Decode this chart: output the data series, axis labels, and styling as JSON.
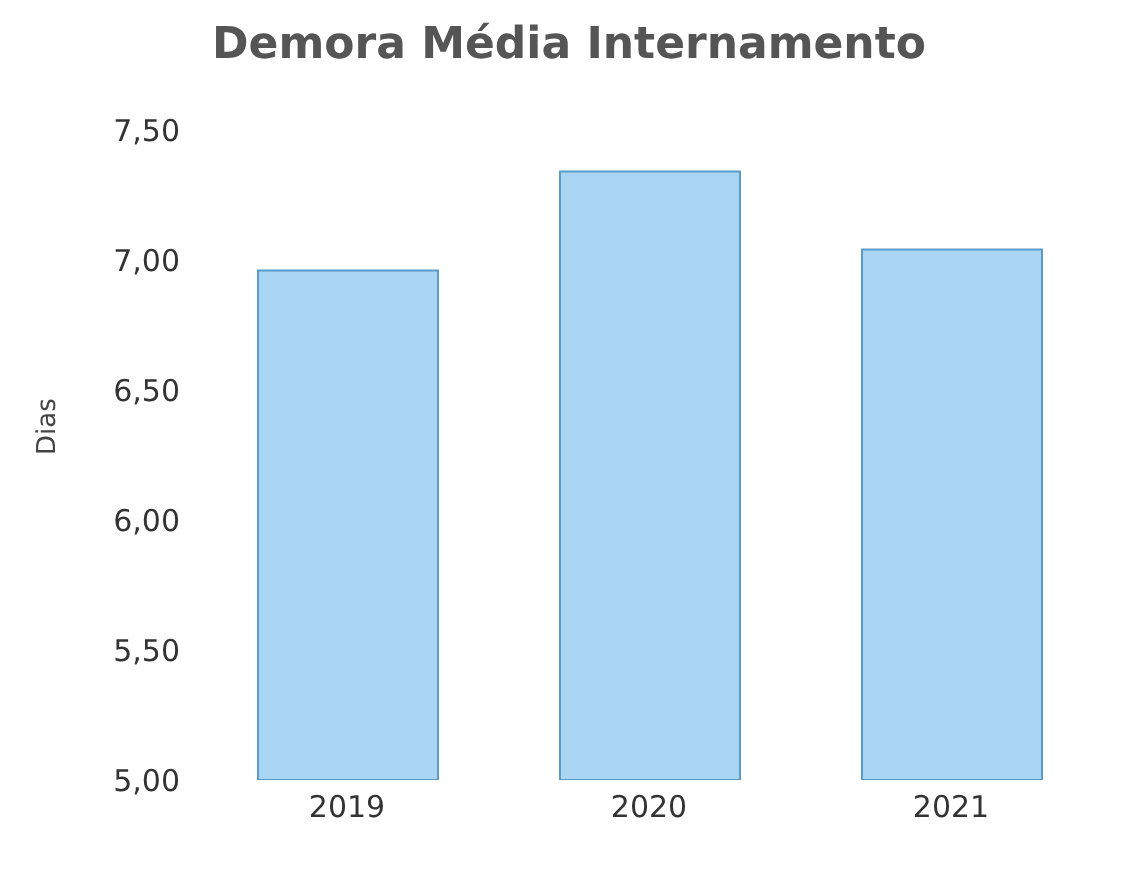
{
  "chart_data": {
    "type": "bar",
    "title": "Demora Média Internamento",
    "ylabel": "Dias",
    "categories": [
      "2019",
      "2020",
      "2021"
    ],
    "values": [
      6.96,
      7.34,
      7.04
    ],
    "color": "#a9d5f3",
    "ylim": [
      5,
      7.5
    ],
    "yticks": [
      {
        "value": 5,
        "label": "5,00"
      },
      {
        "value": 5.5,
        "label": "5,50"
      },
      {
        "value": 6,
        "label": "6,00"
      },
      {
        "value": 6.5,
        "label": "6,50"
      },
      {
        "value": 7,
        "label": "7,00"
      },
      {
        "value": 7.5,
        "label": "7,50"
      }
    ],
    "grid": false
  }
}
